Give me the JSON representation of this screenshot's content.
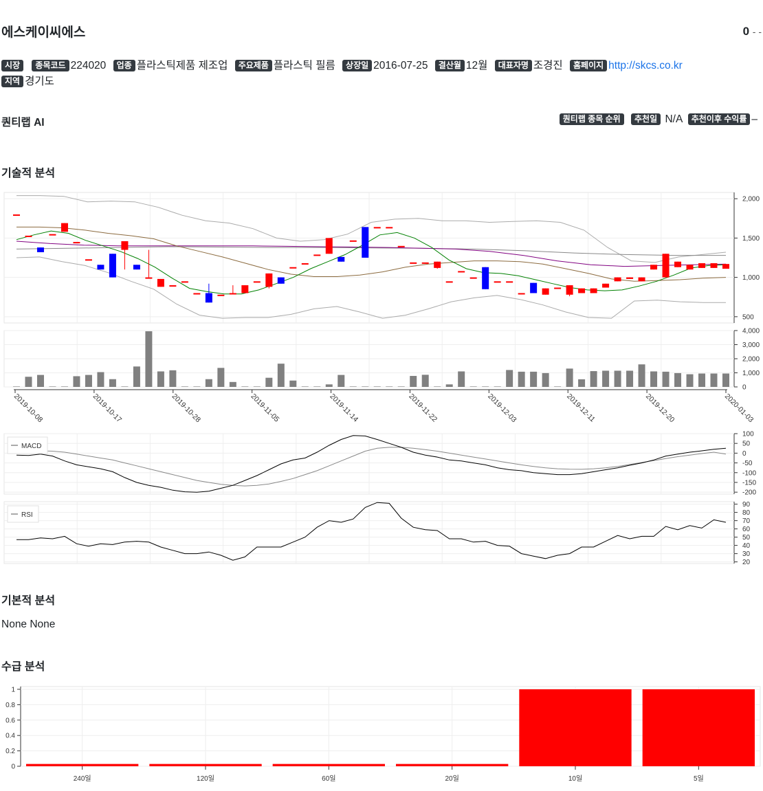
{
  "header": {
    "company_name": "에스케이씨에스",
    "price": "0",
    "change": "- -"
  },
  "info": {
    "market_label": "시장",
    "code_label": "종목코드",
    "code": "224020",
    "industry_label": "업종",
    "industry": "플라스틱제품 제조업",
    "product_label": "주요제품",
    "product": "플라스틱 필름",
    "listing_label": "상장일",
    "listing": "2016-07-25",
    "fiscal_label": "결산월",
    "fiscal": "12월",
    "ceo_label": "대표자명",
    "ceo": "조경진",
    "homepage_label": "홈페이지",
    "homepage": "http://skcs.co.kr",
    "region_label": "지역",
    "region": "경기도"
  },
  "ai": {
    "title": "퀀티랩 AI",
    "rank_label": "퀀티랩 종목 순위",
    "rec_date_label": "추천일",
    "rec_date": "N/A",
    "return_label": "추천이후 수익률",
    "return_value": "–"
  },
  "sections": {
    "technical": "기술적 분석",
    "fundamental": "기본적 분석",
    "fundamental_text": "None None",
    "supply": "수급 분석"
  },
  "chart_data": [
    {
      "type": "candlestick",
      "series_note": "OHLC with bollinger bands, moving averages",
      "ylim": [
        420,
        2080
      ],
      "yticks": [
        "500",
        "1,000",
        "1,500",
        "2,000"
      ],
      "ohlc": [
        [
          1800,
          1800,
          1800,
          1800
        ],
        [
          1530,
          1530,
          1530,
          1530
        ],
        [
          1380,
          1380,
          1320,
          1320
        ],
        [
          1550,
          1550,
          1550,
          1550
        ],
        [
          1580,
          1690,
          1580,
          1690
        ],
        [
          1450,
          1450,
          1450,
          1450
        ],
        [
          1230,
          1230,
          1230,
          1230
        ],
        [
          1160,
          1160,
          1100,
          1100
        ],
        [
          1300,
          1300,
          1000,
          1000
        ],
        [
          1350,
          1460,
          1100,
          1460
        ],
        [
          1160,
          1160,
          1100,
          1100
        ],
        [
          1000,
          1350,
          1000,
          1000
        ],
        [
          880,
          980,
          880,
          980
        ],
        [
          900,
          900,
          900,
          900
        ],
        [
          950,
          950,
          950,
          950
        ],
        [
          800,
          800,
          800,
          800
        ],
        [
          800,
          920,
          680,
          680
        ],
        [
          780,
          780,
          780,
          780
        ],
        [
          800,
          900,
          790,
          800
        ],
        [
          800,
          900,
          800,
          900
        ],
        [
          950,
          950,
          950,
          950
        ],
        [
          880,
          1050,
          860,
          1050
        ],
        [
          1000,
          1000,
          920,
          920
        ],
        [
          1130,
          1130,
          1130,
          1130
        ],
        [
          1180,
          1180,
          1180,
          1180
        ],
        [
          1290,
          1290,
          1290,
          1290
        ],
        [
          1300,
          1500,
          1300,
          1500
        ],
        [
          1260,
          1260,
          1200,
          1200
        ],
        [
          1470,
          1470,
          1470,
          1470
        ],
        [
          1640,
          1640,
          1250,
          1250
        ],
        [
          1640,
          1640,
          1640,
          1640
        ],
        [
          1640,
          1640,
          1640,
          1640
        ],
        [
          1400,
          1400,
          1400,
          1400
        ],
        [
          1190,
          1190,
          1190,
          1190
        ],
        [
          1190,
          1190,
          1190,
          1190
        ],
        [
          1120,
          1200,
          1110,
          1200
        ],
        [
          950,
          950,
          950,
          950
        ],
        [
          1080,
          1080,
          1080,
          1080
        ],
        [
          1000,
          1000,
          1000,
          1000
        ],
        [
          1130,
          1130,
          850,
          850
        ],
        [
          950,
          950,
          950,
          950
        ],
        [
          950,
          950,
          950,
          950
        ],
        [
          800,
          800,
          800,
          800
        ],
        [
          930,
          930,
          800,
          800
        ],
        [
          780,
          860,
          780,
          860
        ],
        [
          870,
          870,
          870,
          870
        ],
        [
          780,
          900,
          760,
          900
        ],
        [
          800,
          860,
          800,
          860
        ],
        [
          800,
          860,
          800,
          860
        ],
        [
          870,
          920,
          870,
          920
        ],
        [
          950,
          1000,
          950,
          1000
        ],
        [
          980,
          1000,
          980,
          1000
        ],
        [
          950,
          1000,
          950,
          1000
        ],
        [
          1100,
          1160,
          1100,
          1160
        ],
        [
          1000,
          1300,
          1000,
          1300
        ],
        [
          1130,
          1200,
          1130,
          1200
        ],
        [
          1100,
          1160,
          1100,
          1160
        ],
        [
          1120,
          1180,
          1120,
          1180
        ],
        [
          1120,
          1180,
          1120,
          1180
        ],
        [
          1110,
          1170,
          1110,
          1170
        ]
      ],
      "ma_green": [
        1480,
        1540,
        1590,
        1560,
        1470,
        1400,
        1330,
        1240,
        1130,
        990,
        860,
        820,
        790,
        790,
        840,
        920,
        1000,
        1110,
        1200,
        1290,
        1410,
        1540,
        1570,
        1500,
        1380,
        1220,
        1110,
        1060,
        1050,
        1020,
        970,
        920,
        870,
        840,
        830,
        840,
        890,
        950,
        1030,
        1120,
        1150,
        1160
      ],
      "ma_brown": [
        1640,
        1640,
        1630,
        1600,
        1560,
        1530,
        1490,
        1400,
        1330,
        1260,
        1180,
        1100,
        1040,
        1010,
        1010,
        1030,
        1070,
        1130,
        1170,
        1190,
        1210,
        1210,
        1200,
        1170,
        1110,
        1050,
        980,
        950,
        960,
        970,
        990,
        1000
      ],
      "ma_purple": [
        1460,
        1430,
        1410,
        1400,
        1400,
        1400,
        1400,
        1400,
        1395,
        1390,
        1385,
        1380,
        1370,
        1360,
        1330,
        1280,
        1210,
        1160,
        1140,
        1150,
        1160,
        1170
      ],
      "bb_upper": [
        2040,
        2040,
        2030,
        1960,
        1970,
        1960,
        1890,
        1790,
        1720,
        1690,
        1620,
        1500,
        1460,
        1480,
        1550,
        1700,
        1740,
        1750,
        1720,
        1720,
        1700,
        1710,
        1720,
        1700,
        1600,
        1380,
        1210,
        1190,
        1260,
        1290,
        1320
      ],
      "bb_lower": [
        1250,
        1260,
        1200,
        1150,
        1060,
        950,
        850,
        660,
        520,
        480,
        490,
        490,
        530,
        600,
        630,
        560,
        480,
        520,
        600,
        690,
        740,
        770,
        720,
        650,
        560,
        490,
        480,
        700,
        710,
        690,
        680,
        680
      ],
      "mid_gray": [
        1360,
        1370,
        1380,
        1390,
        1385,
        1380,
        1380,
        1375,
        1370,
        1360,
        1340,
        1310,
        1290,
        1280,
        1280
      ]
    },
    {
      "type": "bar",
      "name": "volume",
      "ylim": [
        0,
        4000
      ],
      "yticks": [
        "0",
        "1,000",
        "2,000",
        "3,000",
        "4,000"
      ],
      "values": [
        30,
        720,
        850,
        30,
        30,
        760,
        850,
        1050,
        550,
        30,
        1450,
        3950,
        1100,
        1180,
        30,
        30,
        550,
        1350,
        350,
        30,
        30,
        650,
        1650,
        450,
        30,
        30,
        180,
        850,
        30,
        30,
        30,
        30,
        30,
        780,
        860,
        30,
        180,
        1100,
        30,
        30,
        30,
        1200,
        1080,
        1080,
        980,
        30,
        1300,
        540,
        1120,
        1150,
        1150,
        1150,
        1600,
        1100,
        1080,
        980,
        900,
        950,
        950,
        950
      ]
    },
    {
      "type": "line",
      "x_ticks": [
        "2019-10-08",
        "2019-10-17",
        "2019-10-28",
        "2019-11-05",
        "2019-11-14",
        "2019-11-22",
        "2019-12-03",
        "2019-12-11",
        "2019-12-20",
        "2020-01-03"
      ]
    },
    {
      "type": "line",
      "legend": "MACD",
      "ylim": [
        -210,
        100
      ],
      "yticks": [
        "100",
        "50",
        "0",
        "-50",
        "-100",
        "-150",
        "-200"
      ],
      "macd": [
        -10,
        -12,
        -5,
        -15,
        -40,
        -60,
        -70,
        -80,
        -95,
        -125,
        -150,
        -165,
        -175,
        -190,
        -198,
        -200,
        -195,
        -180,
        -165,
        -140,
        -115,
        -85,
        -55,
        -35,
        -25,
        5,
        40,
        70,
        90,
        88,
        70,
        50,
        30,
        5,
        -10,
        -20,
        -35,
        -40,
        -50,
        -60,
        -75,
        -85,
        -90,
        -100,
        -105,
        -110,
        -110,
        -105,
        -95,
        -85,
        -75,
        -62,
        -50,
        -35,
        -15,
        -5,
        5,
        12,
        20,
        25
      ],
      "signal": [
        20,
        15,
        12,
        10,
        5,
        -5,
        -15,
        -25,
        -35,
        -50,
        -65,
        -80,
        -95,
        -110,
        -125,
        -140,
        -150,
        -160,
        -165,
        -168,
        -165,
        -158,
        -145,
        -130,
        -110,
        -90,
        -65,
        -40,
        -15,
        10,
        25,
        30,
        30,
        25,
        18,
        10,
        0,
        -10,
        -20,
        -30,
        -40,
        -50,
        -60,
        -68,
        -75,
        -80,
        -82,
        -83,
        -80,
        -75,
        -68,
        -58,
        -48,
        -38,
        -28,
        -18,
        -10,
        -2,
        5,
        -5
      ]
    },
    {
      "type": "line",
      "legend": "RSI",
      "ylim": [
        18,
        93
      ],
      "yticks": [
        "90",
        "80",
        "70",
        "60",
        "50",
        "40",
        "30",
        "20"
      ],
      "values": [
        47,
        47,
        49,
        48,
        51,
        42,
        39,
        42,
        41,
        44,
        45,
        44,
        38,
        34,
        30,
        30,
        32,
        28,
        22,
        26,
        38,
        38,
        38,
        44,
        50,
        62,
        70,
        68,
        72,
        86,
        92,
        91,
        73,
        62,
        59,
        58,
        48,
        48,
        44,
        45,
        40,
        39,
        30,
        27,
        24,
        28,
        30,
        38,
        38,
        45,
        52,
        48,
        51,
        51,
        63,
        59,
        64,
        61,
        71,
        68
      ]
    },
    {
      "type": "bar",
      "name": "supply",
      "categories": [
        "240일",
        "120일",
        "60일",
        "20일",
        "10일",
        "5일"
      ],
      "values": [
        0.03,
        0.03,
        0.03,
        0.03,
        1,
        1
      ],
      "ylim": [
        0,
        1
      ],
      "yticks": [
        "0",
        "0.2",
        "0.4",
        "0.6",
        "0.8",
        "1"
      ],
      "color": "#ff0000"
    }
  ],
  "colors": {
    "up": "#ff0000",
    "down": "#0000ff",
    "ma_green": "#008000",
    "ma_brown": "#8b6a3e",
    "ma_purple": "#800080",
    "band": "#999999",
    "volume": "#808080"
  }
}
